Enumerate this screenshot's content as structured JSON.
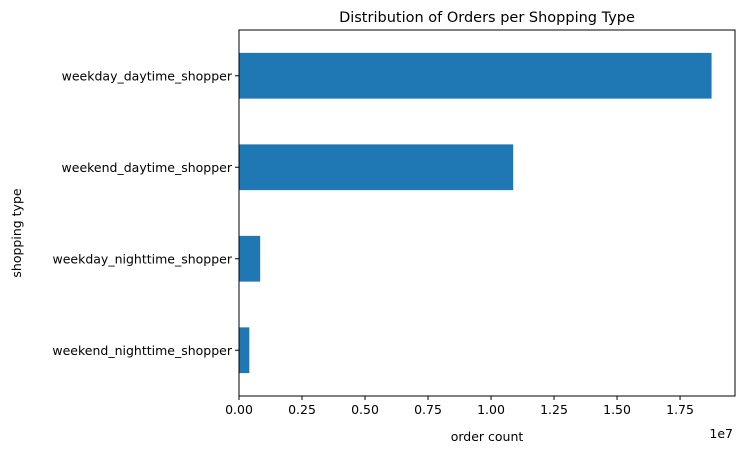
{
  "chart_data": {
    "type": "bar",
    "orientation": "horizontal",
    "title": "Distribution of Orders per Shopping Type",
    "xlabel": "order count",
    "ylabel": "shopping type",
    "x_offset_label": "1e7",
    "categories": [
      "weekday_daytime_shopper",
      "weekend_daytime_shopper",
      "weekday_nighttime_shopper",
      "weekend_nighttime_shopper"
    ],
    "values": [
      18750000,
      10880000,
      840000,
      410000
    ],
    "xlim": [
      0,
      19680000
    ],
    "xticks": [
      {
        "value": 0,
        "label": "0.00"
      },
      {
        "value": 2500000,
        "label": "0.25"
      },
      {
        "value": 5000000,
        "label": "0.50"
      },
      {
        "value": 7500000,
        "label": "0.75"
      },
      {
        "value": 10000000,
        "label": "1.00"
      },
      {
        "value": 12500000,
        "label": "1.25"
      },
      {
        "value": 15000000,
        "label": "1.50"
      },
      {
        "value": 17500000,
        "label": "1.75"
      }
    ],
    "grid": false,
    "legend": "none",
    "bar_color": "#1f77b4"
  }
}
